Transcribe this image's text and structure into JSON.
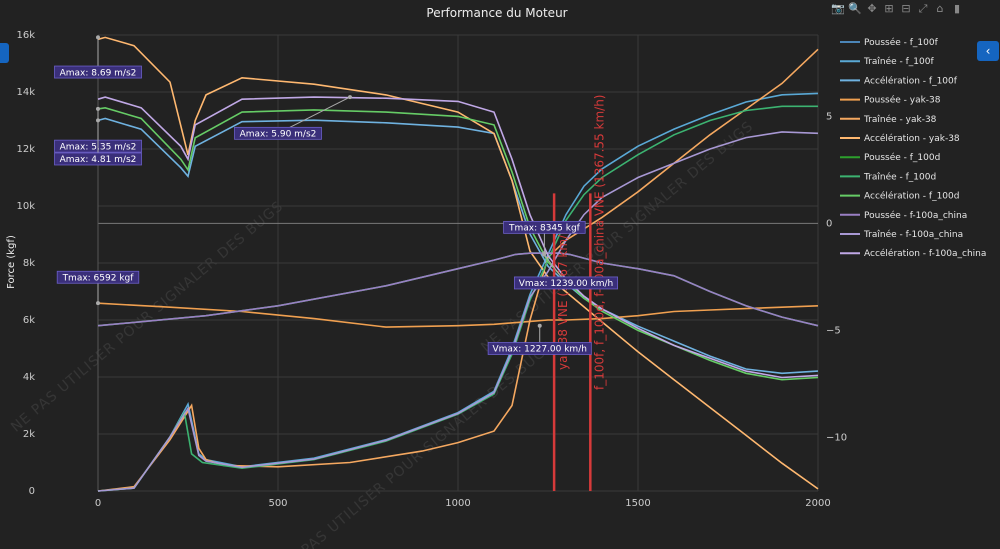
{
  "toolbar": {
    "icons": [
      "camera-icon",
      "zoom-icon",
      "pan-icon",
      "zoom-in-icon",
      "zoom-out-icon",
      "autoscale-icon",
      "home-icon",
      "plotly-logo-icon"
    ],
    "glyphs": [
      "📷",
      "🔍",
      "✥",
      "⊞",
      "⊟",
      "⤢",
      "⌂",
      "▮"
    ]
  },
  "sidebar": {
    "collapse_glyph": "‹",
    "expand_glyph": "‹"
  },
  "chart_data": {
    "type": "line",
    "title": "Performance du Moteur",
    "xlabel": "",
    "ylabel": "Force (kgf)",
    "xlim": [
      0,
      2000
    ],
    "ylim": [
      0,
      16000
    ],
    "y2lim": [
      -12.5,
      8.8
    ],
    "x_ticks": [
      0,
      500,
      1000,
      1500,
      2000
    ],
    "y_ticks": [
      0,
      2000,
      4000,
      6000,
      8000,
      10000,
      12000,
      14000,
      16000
    ],
    "y_tick_labels": [
      "0",
      "2k",
      "4k",
      "6k",
      "8k",
      "10k",
      "12k",
      "14k",
      "16k"
    ],
    "y2_ticks": [
      -10,
      -5,
      0,
      5
    ],
    "y2_tick_labels": [
      "−10",
      "−5",
      "0",
      "5"
    ],
    "grid": true,
    "legend_position": "right",
    "watermark": "NE PAS UTILISER POUR SIGNALER DES BUGS",
    "series": [
      {
        "name": "Poussée - f_100f",
        "color": "#4c86b8",
        "axis": "y",
        "x": [
          0,
          300,
          500,
          800,
          1000,
          1100,
          1160,
          1200,
          1240,
          1280,
          1310,
          1400,
          1500,
          1600,
          1700,
          1800,
          1900,
          2000
        ],
        "y": [
          5800,
          6150,
          6500,
          7200,
          7800,
          8100,
          8300,
          8350,
          8350,
          8350,
          8300,
          8000,
          7800,
          7550,
          7000,
          6500,
          6100,
          5800
        ]
      },
      {
        "name": "Traînée - f_100f",
        "color": "#5aa9d6",
        "axis": "y",
        "x": [
          0,
          100,
          200,
          250,
          280,
          300,
          400,
          600,
          800,
          1000,
          1100,
          1150,
          1200,
          1250,
          1300,
          1350,
          1400,
          1500,
          1600,
          1700,
          1800,
          1900,
          2000
        ],
        "y": [
          0,
          100,
          1900,
          3050,
          1300,
          1100,
          850,
          1150,
          1800,
          2750,
          3500,
          5000,
          6900,
          8300,
          9700,
          10700,
          11300,
          12100,
          12700,
          13200,
          13650,
          13900,
          13950
        ]
      },
      {
        "name": "Accélération - f_100f",
        "color": "#6fb2e0",
        "axis": "y2",
        "x": [
          0,
          20,
          120,
          230,
          250,
          270,
          400,
          600,
          800,
          1000,
          1100,
          1150,
          1200,
          1250,
          1300,
          1350,
          1400,
          1500,
          1600,
          1700,
          1800,
          1900,
          2000
        ],
        "y": [
          4.81,
          4.9,
          4.4,
          2.6,
          2.2,
          3.6,
          4.75,
          4.82,
          4.7,
          4.5,
          4.2,
          2.0,
          -0.5,
          -2.0,
          -2.8,
          -3.5,
          -4.0,
          -4.8,
          -5.5,
          -6.2,
          -6.8,
          -7.0,
          -6.9
        ]
      },
      {
        "name": "Poussée - yak-38",
        "color": "#f0a050",
        "axis": "y",
        "x": [
          0,
          200,
          400,
          600,
          800,
          1000,
          1100,
          1200,
          1250,
          1300,
          1400,
          1500,
          1600,
          1700,
          1800,
          1900,
          2000
        ],
        "y": [
          6590,
          6450,
          6300,
          6050,
          5750,
          5800,
          5850,
          5950,
          6000,
          6000,
          6050,
          6150,
          6300,
          6350,
          6400,
          6450,
          6500
        ]
      },
      {
        "name": "Traînée - yak-38",
        "color": "#f5a860",
        "axis": "y",
        "x": [
          0,
          100,
          200,
          260,
          280,
          300,
          350,
          500,
          700,
          900,
          1000,
          1100,
          1150,
          1200,
          1250,
          1300,
          1400,
          1500,
          1600,
          1700,
          1800,
          1900,
          2000
        ],
        "y": [
          0,
          150,
          1800,
          3000,
          1500,
          1100,
          900,
          850,
          1000,
          1400,
          1700,
          2100,
          3000,
          6000,
          8200,
          8800,
          9600,
          10500,
          11500,
          12500,
          13400,
          14300,
          15500
        ]
      },
      {
        "name": "Accélération - yak-38",
        "color": "#ffb870",
        "axis": "y2",
        "x": [
          0,
          20,
          100,
          200,
          250,
          270,
          300,
          400,
          600,
          800,
          1000,
          1100,
          1150,
          1200,
          1250,
          1300,
          1400,
          1500,
          1600,
          1700,
          1800,
          1900,
          2000
        ],
        "y": [
          8.6,
          8.69,
          8.3,
          6.6,
          3.2,
          4.8,
          6.0,
          6.8,
          6.5,
          6.0,
          5.2,
          4.2,
          2.0,
          -1.3,
          -2.5,
          -3.2,
          -4.6,
          -6.0,
          -7.3,
          -8.6,
          -9.9,
          -11.2,
          -12.4
        ]
      },
      {
        "name": "Poussée - f_100d",
        "color": "#2ca02c",
        "axis": "y",
        "x": [
          0,
          300,
          500,
          800,
          1000,
          1100,
          1160,
          1200,
          1240,
          1280,
          1310,
          1400,
          1500,
          1600,
          1700,
          1800,
          1900,
          2000
        ],
        "y": [
          5800,
          6150,
          6500,
          7200,
          7800,
          8100,
          8300,
          8345,
          8345,
          8345,
          8300,
          8000,
          7800,
          7550,
          7000,
          6500,
          6100,
          5800
        ]
      },
      {
        "name": "Traînée - f_100d",
        "color": "#3cb371",
        "axis": "y",
        "x": [
          0,
          100,
          200,
          240,
          260,
          290,
          400,
          600,
          800,
          1000,
          1100,
          1150,
          1200,
          1250,
          1300,
          1350,
          1400,
          1500,
          1600,
          1700,
          1800,
          1900,
          2000
        ],
        "y": [
          0,
          100,
          1900,
          2750,
          1300,
          1000,
          800,
          1100,
          1750,
          2700,
          3400,
          4800,
          6700,
          8100,
          9500,
          10400,
          11000,
          11800,
          12500,
          13000,
          13350,
          13500,
          13500
        ]
      },
      {
        "name": "Accélération - f_100d",
        "color": "#66cc66",
        "axis": "y2",
        "x": [
          0,
          20,
          120,
          230,
          250,
          270,
          400,
          600,
          800,
          1000,
          1100,
          1150,
          1200,
          1250,
          1300,
          1350,
          1400,
          1500,
          1600,
          1700,
          1800,
          1900,
          2000
        ],
        "y": [
          5.35,
          5.4,
          4.9,
          3.0,
          2.5,
          4.0,
          5.2,
          5.3,
          5.2,
          5.0,
          4.6,
          2.4,
          -0.2,
          -1.8,
          -2.7,
          -3.5,
          -4.1,
          -5.0,
          -5.7,
          -6.4,
          -7.0,
          -7.3,
          -7.2
        ]
      },
      {
        "name": "Poussée - f-100a_china",
        "color": "#9a7fc4",
        "axis": "y",
        "x": [
          0,
          300,
          500,
          800,
          1000,
          1100,
          1160,
          1200,
          1240,
          1280,
          1310,
          1400,
          1500,
          1600,
          1700,
          1800,
          1900,
          2000
        ],
        "y": [
          5800,
          6150,
          6500,
          7200,
          7800,
          8100,
          8300,
          8345,
          8345,
          8345,
          8300,
          8000,
          7800,
          7550,
          7000,
          6500,
          6100,
          5800
        ]
      },
      {
        "name": "Traînée - f-100a_china",
        "color": "#a898d4",
        "axis": "y",
        "x": [
          0,
          100,
          200,
          250,
          280,
          300,
          400,
          600,
          800,
          1000,
          1100,
          1150,
          1200,
          1250,
          1300,
          1350,
          1400,
          1500,
          1600,
          1700,
          1800,
          1900,
          2000
        ],
        "y": [
          0,
          100,
          1900,
          2900,
          1250,
          1050,
          830,
          1120,
          1780,
          2720,
          3450,
          4900,
          6800,
          7700,
          8800,
          9700,
          10300,
          11000,
          11500,
          12000,
          12400,
          12600,
          12550
        ]
      },
      {
        "name": "Accélération - f-100a_china",
        "color": "#c0a8e6",
        "axis": "y2",
        "x": [
          0,
          20,
          120,
          230,
          250,
          270,
          400,
          600,
          800,
          1000,
          1100,
          1150,
          1200,
          1250,
          1300,
          1350,
          1400,
          1500,
          1600,
          1700,
          1800,
          1900,
          2000
        ],
        "y": [
          5.8,
          5.9,
          5.4,
          3.6,
          3.0,
          4.6,
          5.8,
          5.9,
          5.85,
          5.7,
          5.2,
          3.0,
          0.4,
          -1.5,
          -2.6,
          -3.4,
          -4.0,
          -4.9,
          -5.7,
          -6.3,
          -6.9,
          -7.2,
          -7.1
        ]
      }
    ],
    "vlines": [
      {
        "x": 1267,
        "label": "yak-38 VNE (1267 km/h)",
        "color": "#d63a3a"
      },
      {
        "x": 1367.55,
        "label": "f_100f, f_100d, f-100a_china VNE (1367.55 km/h)",
        "color": "#d63a3a"
      }
    ],
    "annotations": [
      {
        "text": "Amax: 8.69 m/s2",
        "x": 0,
        "axis": "y2",
        "y": 8.69,
        "box_x": 0,
        "box_y": 14700
      },
      {
        "text": "Amax: 5.35 m/s2",
        "x": 0,
        "axis": "y2",
        "y": 5.35,
        "box_x": 0,
        "box_y": 12100
      },
      {
        "text": "Amax: 4.81 m/s2",
        "x": 0,
        "axis": "y2",
        "y": 4.81,
        "box_x": 0,
        "box_y": 11650
      },
      {
        "text": "Amax: 5.90 m/s2",
        "x": 700,
        "axis": "y2",
        "y": 5.9,
        "box_x": 500,
        "box_y": 12550
      },
      {
        "text": "Tmax: 6592 kgf",
        "x": 0,
        "axis": "y",
        "y": 6592,
        "box_x": 0,
        "box_y": 7500
      },
      {
        "text": "Tmax: 8345 kgf",
        "x": 1240,
        "axis": "y",
        "y": 8345,
        "box_x": 1240,
        "box_y": 9250
      },
      {
        "text": "Vmax: 1239.00 km/h",
        "x": 1239,
        "axis": "y",
        "y": 8300,
        "box_x": 1300,
        "box_y": 7300
      },
      {
        "text": "Vmax: 1227.00 km/h",
        "x": 1227,
        "axis": "y",
        "y": 5800,
        "box_x": 1227,
        "box_y": 5000
      }
    ]
  }
}
